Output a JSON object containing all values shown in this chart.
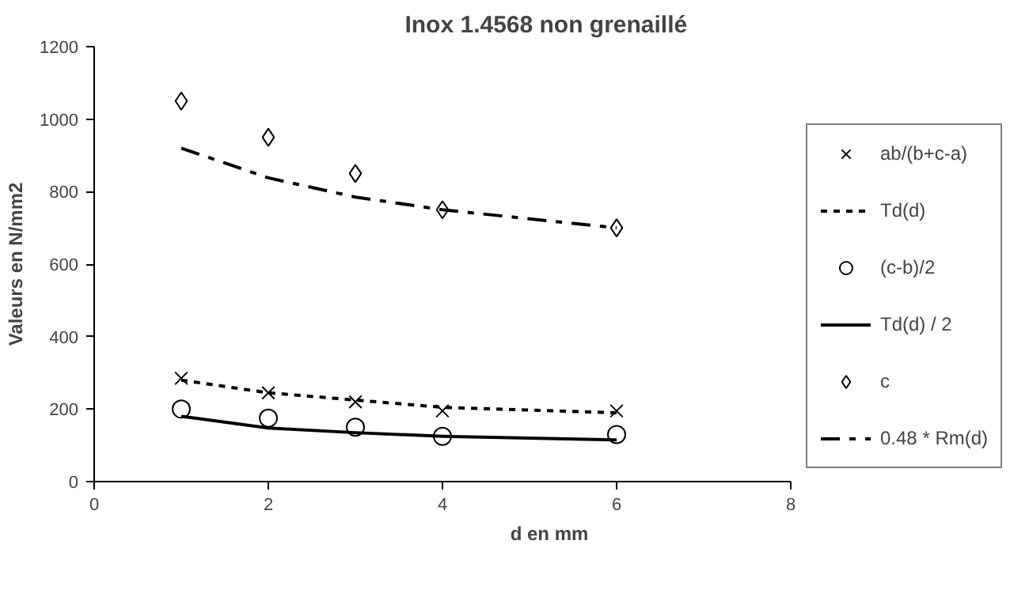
{
  "chart_data": {
    "type": "scatter",
    "title": "Inox  1.4568 non grenaillé",
    "xlabel": "d en mm",
    "ylabel": "Valeurs en N/mm2",
    "xlim": [
      0,
      8
    ],
    "xticks": [
      0,
      2,
      4,
      6,
      8
    ],
    "ylim": [
      0,
      1200
    ],
    "yticks": [
      0,
      200,
      400,
      600,
      800,
      1000,
      1200
    ],
    "grid": false,
    "legend": "right",
    "series": [
      {
        "name": "ab/(b+c-a)",
        "marker": "cross",
        "color": "#000000",
        "x": [
          1,
          2,
          3,
          4,
          6
        ],
        "values": [
          285,
          245,
          220,
          195,
          195
        ]
      },
      {
        "name": "Td(d)",
        "type": "line",
        "line_style": "dotted",
        "marker": "none",
        "color": "#000000",
        "x": [
          1,
          2,
          3,
          4,
          6
        ],
        "values": [
          280,
          245,
          225,
          205,
          190
        ]
      },
      {
        "name": "(c-b)/2",
        "marker": "circle",
        "color": "#000000",
        "x": [
          1,
          2,
          3,
          4,
          6
        ],
        "values": [
          200,
          175,
          150,
          125,
          130
        ]
      },
      {
        "name": "Td(d) / 2",
        "type": "line",
        "line_style": "solid",
        "marker": "none",
        "color": "#000000",
        "x": [
          1,
          2,
          3,
          4,
          6
        ],
        "values": [
          180,
          148,
          135,
          125,
          115
        ]
      },
      {
        "name": "c",
        "marker": "diamond",
        "color": "#000000",
        "x": [
          1,
          2,
          3,
          4,
          6
        ],
        "values": [
          1050,
          950,
          850,
          750,
          700
        ]
      },
      {
        "name": "0.48 * Rm(d)",
        "type": "line",
        "line_style": "dashed",
        "marker": "none",
        "color": "#000000",
        "x": [
          1,
          2,
          3,
          4,
          6
        ],
        "values": [
          920,
          838,
          785,
          750,
          700
        ]
      }
    ]
  }
}
